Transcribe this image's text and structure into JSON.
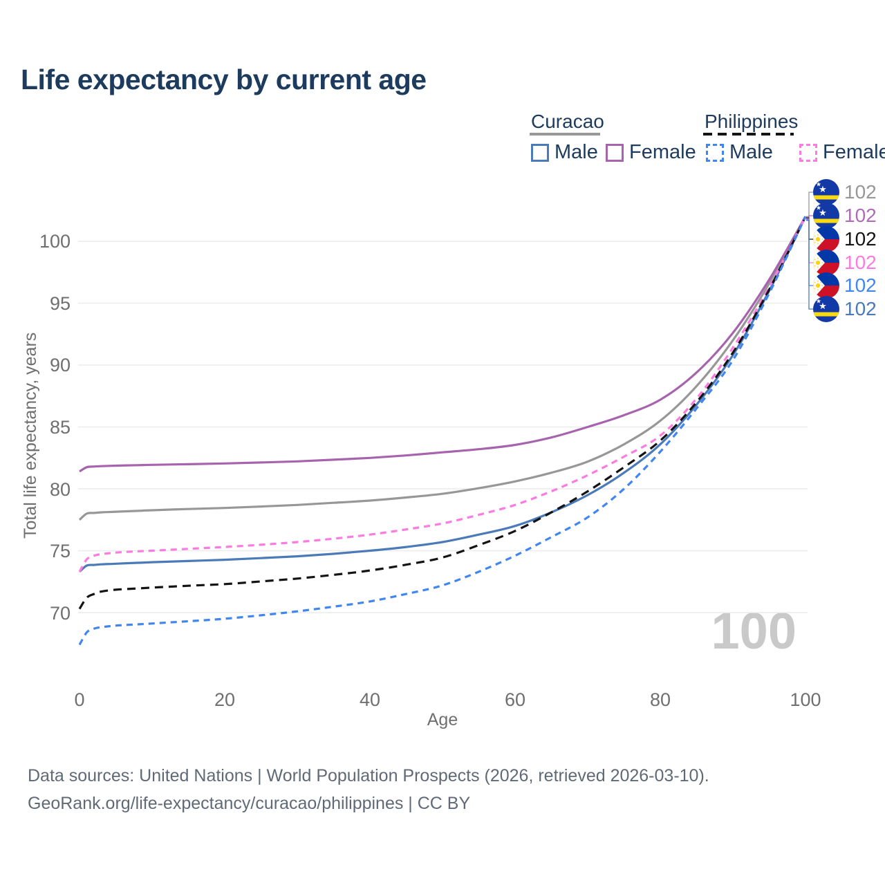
{
  "title": "Life expectancy by current age",
  "watermark": "100",
  "legend": {
    "curacao": {
      "label": "Curacao",
      "male_label": "Male",
      "female_label": "Female"
    },
    "philippines": {
      "label": "Philippines",
      "male_label": "Male",
      "female_label": "Female"
    }
  },
  "colors": {
    "curacao_all": "#979797",
    "curacao_female": "#a763ae",
    "curacao_male": "#4a7ab8",
    "philippines_all": "#141414",
    "philippines_female": "#fb7be0",
    "philippines_male": "#4186f0",
    "title_text": "#1c3b5d",
    "axis_text": "#6f6f6f",
    "grid": "#ececec",
    "watermark": "#c9c9c9"
  },
  "y_axis": {
    "label": "Total life expectancy, years",
    "ticks": [
      "100",
      "95",
      "90",
      "85",
      "80",
      "75",
      "70"
    ]
  },
  "x_axis": {
    "label": "Age",
    "ticks": [
      "0",
      "20",
      "40",
      "60",
      "80",
      "100"
    ]
  },
  "end_labels": [
    {
      "flag": "curacao",
      "series": "Curacao",
      "value": "102",
      "color": "#979797"
    },
    {
      "flag": "curacao",
      "series": "Curacao Female",
      "value": "102",
      "color": "#ad6cb5"
    },
    {
      "flag": "philippines",
      "series": "Philippines",
      "value": "102",
      "color": "#141414"
    },
    {
      "flag": "philippines",
      "series": "Philippines Female",
      "value": "102",
      "color": "#fb7be0"
    },
    {
      "flag": "philippines",
      "series": "Philippines Male",
      "value": "102",
      "color": "#4186f0"
    },
    {
      "flag": "curacao",
      "series": "Curacao Male",
      "value": "102",
      "color": "#4a7ab8"
    }
  ],
  "footer": {
    "line1": "Data sources: United Nations | World Population Prospects (2026, retrieved 2026-03-10).",
    "line2": "GeoRank.org/life-expectancy/curacao/philippines | CC BY"
  },
  "chart_data": {
    "type": "line",
    "title": "Life expectancy by current age",
    "xlabel": "Age",
    "ylabel": "Total life expectancy, years",
    "xlim": [
      0,
      100
    ],
    "ylim": [
      65,
      103
    ],
    "y_ticks": [
      70,
      75,
      80,
      85,
      90,
      95,
      100
    ],
    "grid": true,
    "legend_position": "top-right",
    "end_value_label": "102",
    "x": [
      0,
      1,
      2,
      3,
      5,
      8,
      10,
      15,
      20,
      25,
      30,
      35,
      40,
      45,
      50,
      55,
      60,
      65,
      70,
      75,
      80,
      85,
      90,
      95,
      100
    ],
    "series": [
      {
        "name": "Curacao",
        "key": "curacao_all",
        "style": "solid",
        "dash": null,
        "values": [
          77.5,
          78.0,
          78.05,
          78.1,
          78.15,
          78.22,
          78.27,
          78.37,
          78.45,
          78.57,
          78.7,
          78.87,
          79.05,
          79.3,
          79.6,
          80.05,
          80.6,
          81.3,
          82.2,
          83.6,
          85.5,
          88.3,
          92.0,
          96.6,
          102
        ]
      },
      {
        "name": "Curacao Female",
        "key": "curacao_female",
        "style": "solid",
        "dash": null,
        "values": [
          81.4,
          81.75,
          81.8,
          81.83,
          81.87,
          81.91,
          81.94,
          81.99,
          82.05,
          82.13,
          82.22,
          82.35,
          82.5,
          82.7,
          82.95,
          83.2,
          83.55,
          84.15,
          85.0,
          85.95,
          87.2,
          89.4,
          92.6,
          96.9,
          102
        ]
      },
      {
        "name": "Curacao Male",
        "key": "curacao_male",
        "style": "solid",
        "dash": null,
        "values": [
          73.3,
          73.8,
          73.85,
          73.9,
          73.95,
          74.02,
          74.07,
          74.17,
          74.27,
          74.4,
          74.55,
          74.75,
          75.0,
          75.3,
          75.7,
          76.3,
          77.0,
          78.1,
          79.5,
          81.3,
          83.6,
          86.8,
          90.8,
          96.0,
          102
        ]
      },
      {
        "name": "Philippines Female",
        "key": "philippines_female",
        "style": "dashed",
        "dash": "9 7",
        "values": [
          73.3,
          74.3,
          74.6,
          74.72,
          74.85,
          74.95,
          75.0,
          75.15,
          75.3,
          75.48,
          75.7,
          75.97,
          76.3,
          76.72,
          77.2,
          77.9,
          78.7,
          79.8,
          81.1,
          82.6,
          84.3,
          87.3,
          91.4,
          96.3,
          102
        ]
      },
      {
        "name": "Philippines",
        "key": "philippines_all",
        "style": "dashed",
        "dash": "12 8",
        "values": [
          70.3,
          71.2,
          71.5,
          71.7,
          71.85,
          71.95,
          72.02,
          72.17,
          72.3,
          72.52,
          72.75,
          73.05,
          73.4,
          73.87,
          74.45,
          75.45,
          76.6,
          78.1,
          79.8,
          81.75,
          83.9,
          87.0,
          91.0,
          96.1,
          102
        ]
      },
      {
        "name": "Philippines Male",
        "key": "philippines_male",
        "style": "dashed",
        "dash": "9 7",
        "values": [
          67.4,
          68.4,
          68.7,
          68.82,
          68.95,
          69.05,
          69.12,
          69.3,
          69.5,
          69.78,
          70.1,
          70.48,
          70.9,
          71.5,
          72.2,
          73.3,
          74.6,
          76.1,
          77.7,
          80.0,
          83.0,
          86.5,
          90.4,
          95.8,
          102
        ]
      }
    ]
  }
}
